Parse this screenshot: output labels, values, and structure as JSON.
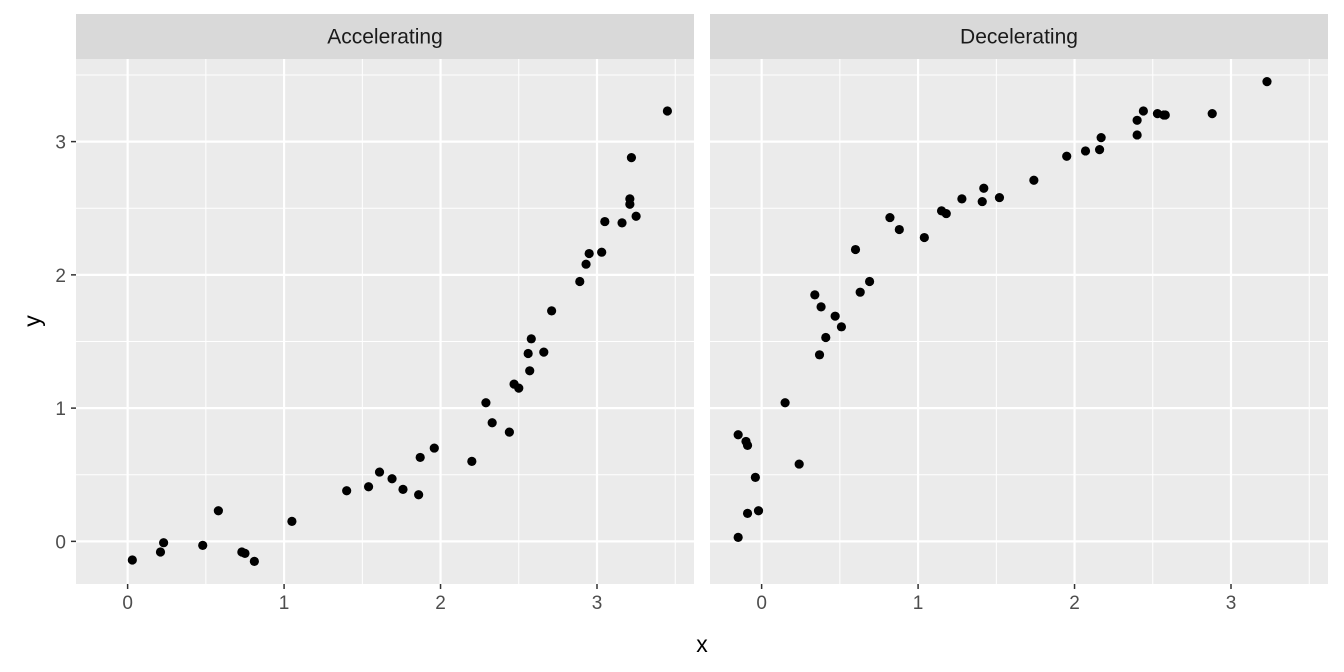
{
  "chart_data": {
    "type": "scatter",
    "xlabel": "x",
    "ylabel": "y",
    "xlim": [
      -0.33,
      3.62
    ],
    "ylim": [
      -0.32,
      3.62
    ],
    "x_ticks": [
      0,
      1,
      2,
      3
    ],
    "y_ticks": [
      0,
      1,
      2,
      3
    ],
    "grid": true,
    "point_color": "#000000",
    "panel_background": "#ebebeb",
    "strip_background": "#d9d9d9",
    "grid_color": "#ffffff",
    "panels": [
      {
        "label": "Accelerating",
        "points": [
          [
            0.03,
            -0.14
          ],
          [
            0.21,
            -0.08
          ],
          [
            0.23,
            -0.01
          ],
          [
            0.48,
            -0.03
          ],
          [
            0.58,
            0.23
          ],
          [
            0.73,
            -0.08
          ],
          [
            0.75,
            -0.09
          ],
          [
            0.81,
            -0.15
          ],
          [
            1.05,
            0.15
          ],
          [
            1.4,
            0.38
          ],
          [
            1.54,
            0.41
          ],
          [
            1.61,
            0.52
          ],
          [
            1.69,
            0.47
          ],
          [
            1.76,
            0.39
          ],
          [
            1.86,
            0.35
          ],
          [
            1.87,
            0.63
          ],
          [
            1.96,
            0.7
          ],
          [
            2.2,
            0.6
          ],
          [
            2.29,
            1.04
          ],
          [
            2.33,
            0.89
          ],
          [
            2.44,
            0.82
          ],
          [
            2.47,
            1.18
          ],
          [
            2.5,
            1.15
          ],
          [
            2.56,
            1.41
          ],
          [
            2.57,
            1.28
          ],
          [
            2.58,
            1.52
          ],
          [
            2.66,
            1.42
          ],
          [
            2.71,
            1.73
          ],
          [
            2.89,
            1.95
          ],
          [
            2.93,
            2.08
          ],
          [
            2.95,
            2.16
          ],
          [
            3.03,
            2.17
          ],
          [
            3.05,
            2.4
          ],
          [
            3.16,
            2.39
          ],
          [
            3.21,
            2.53
          ],
          [
            3.21,
            2.57
          ],
          [
            3.22,
            2.88
          ],
          [
            3.25,
            2.44
          ],
          [
            3.45,
            3.23
          ]
        ]
      },
      {
        "label": "Decelerating",
        "points": [
          [
            -0.15,
            0.8
          ],
          [
            -0.15,
            0.03
          ],
          [
            -0.1,
            0.75
          ],
          [
            -0.09,
            0.72
          ],
          [
            -0.09,
            0.21
          ],
          [
            -0.04,
            0.48
          ],
          [
            -0.02,
            0.23
          ],
          [
            0.15,
            1.04
          ],
          [
            0.24,
            0.58
          ],
          [
            0.34,
            1.85
          ],
          [
            0.37,
            1.4
          ],
          [
            0.38,
            1.76
          ],
          [
            0.41,
            1.53
          ],
          [
            0.47,
            1.69
          ],
          [
            0.51,
            1.61
          ],
          [
            0.6,
            2.19
          ],
          [
            0.63,
            1.87
          ],
          [
            0.69,
            1.95
          ],
          [
            0.82,
            2.43
          ],
          [
            0.88,
            2.34
          ],
          [
            1.04,
            2.28
          ],
          [
            1.15,
            2.48
          ],
          [
            1.18,
            2.46
          ],
          [
            1.28,
            2.57
          ],
          [
            1.41,
            2.55
          ],
          [
            1.42,
            2.65
          ],
          [
            1.52,
            2.58
          ],
          [
            1.74,
            2.71
          ],
          [
            1.95,
            2.89
          ],
          [
            2.07,
            2.93
          ],
          [
            2.16,
            2.94
          ],
          [
            2.17,
            3.03
          ],
          [
            2.4,
            3.16
          ],
          [
            2.4,
            3.05
          ],
          [
            2.44,
            3.23
          ],
          [
            2.53,
            3.21
          ],
          [
            2.57,
            3.2
          ],
          [
            2.58,
            3.2
          ],
          [
            2.88,
            3.21
          ],
          [
            3.23,
            3.45
          ]
        ]
      }
    ]
  }
}
